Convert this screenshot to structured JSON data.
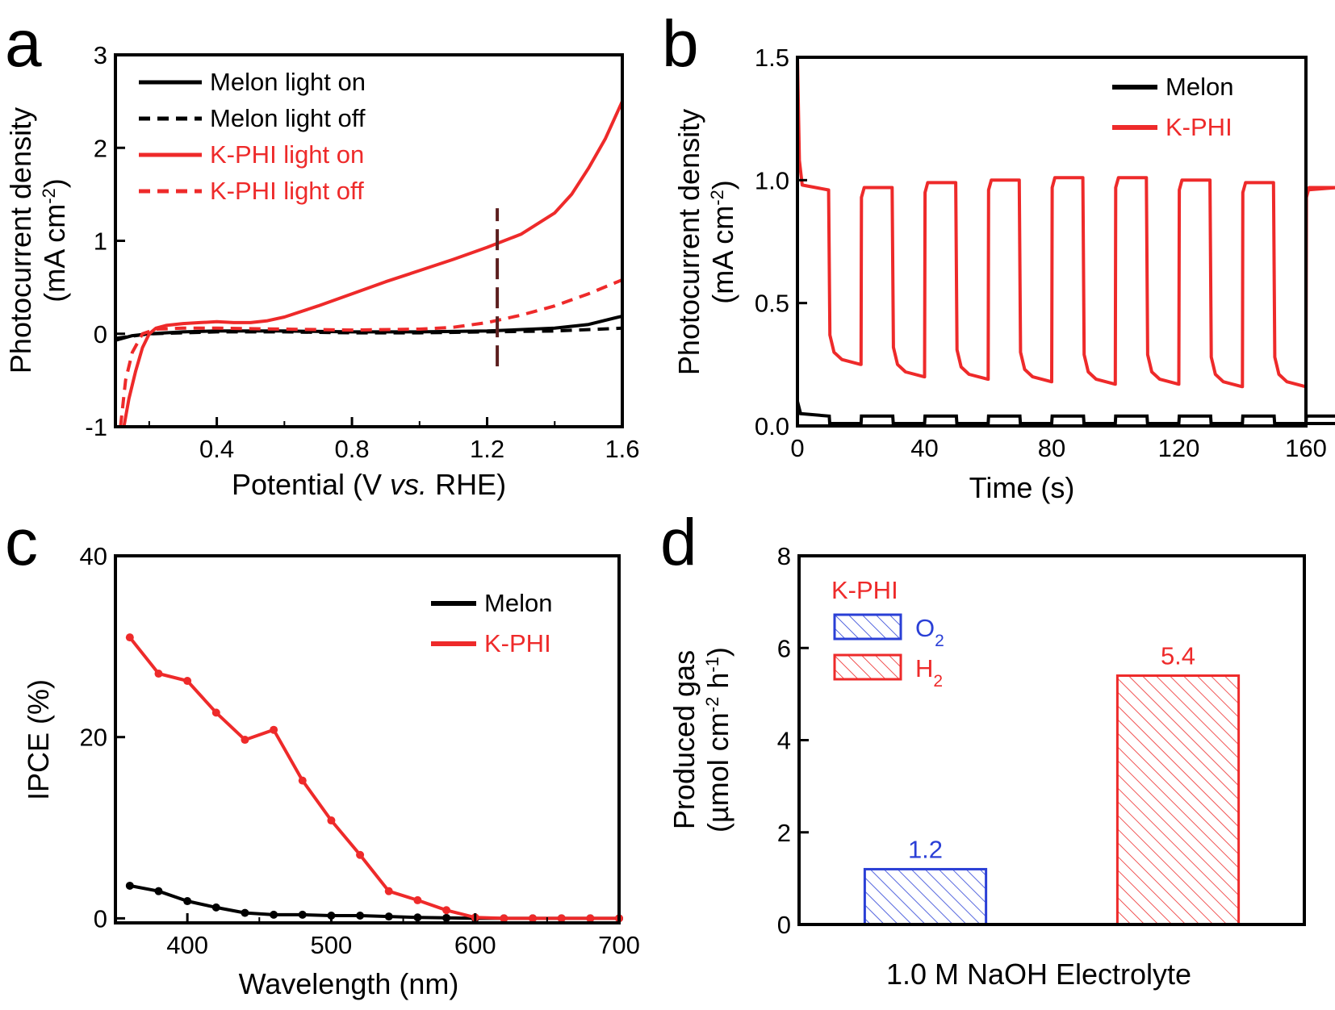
{
  "colors": {
    "melon": "#000000",
    "kphi": "#ee2a2a",
    "o2": "#2a3fd6",
    "h2": "#ee2a2a",
    "marker": "#5c1f1f"
  },
  "chart_data": [
    {
      "panel": "a",
      "type": "line",
      "xlabel_parts": [
        "Potential (V ",
        "vs.",
        " RHE)"
      ],
      "ylabel_lines": [
        "Photocurrent density",
        "(mA cm",
        "-2",
        ")"
      ],
      "xlim": [
        0.1,
        1.6
      ],
      "ylim": [
        -1,
        3
      ],
      "xticks": [
        0.4,
        0.8,
        1.2,
        1.6
      ],
      "xtick_labels": [
        "0.4",
        "0.8",
        "1.2",
        "1.6"
      ],
      "yticks": [
        -1,
        0,
        1,
        2,
        3
      ],
      "ytick_labels": [
        "-1",
        "0",
        "1",
        "2",
        "3"
      ],
      "marker_line": {
        "x": 1.23,
        "y": [
          -0.35,
          1.35
        ]
      },
      "series": [
        {
          "name": "Melon light on",
          "color": "melon",
          "dash": false,
          "x": [
            0.1,
            0.15,
            0.2,
            0.3,
            0.4,
            0.6,
            0.8,
            1.0,
            1.2,
            1.4,
            1.5,
            1.6
          ],
          "y": [
            -0.07,
            -0.02,
            0.0,
            0.02,
            0.03,
            0.03,
            0.02,
            0.02,
            0.03,
            0.06,
            0.1,
            0.19
          ]
        },
        {
          "name": "Melon light off",
          "color": "melon",
          "dash": true,
          "x": [
            0.1,
            0.2,
            0.4,
            0.6,
            0.8,
            1.0,
            1.2,
            1.4,
            1.6
          ],
          "y": [
            -0.05,
            0.0,
            0.02,
            0.02,
            0.01,
            0.01,
            0.02,
            0.03,
            0.06
          ]
        },
        {
          "name": "K-PHI light on",
          "color": "kphi",
          "dash": false,
          "x": [
            0.125,
            0.14,
            0.16,
            0.18,
            0.2,
            0.22,
            0.25,
            0.3,
            0.35,
            0.4,
            0.45,
            0.5,
            0.55,
            0.6,
            0.7,
            0.8,
            0.9,
            1.0,
            1.1,
            1.2,
            1.3,
            1.4,
            1.45,
            1.5,
            1.55,
            1.6
          ],
          "y": [
            -1.0,
            -0.7,
            -0.4,
            -0.15,
            0.0,
            0.06,
            0.09,
            0.11,
            0.12,
            0.13,
            0.12,
            0.12,
            0.14,
            0.18,
            0.3,
            0.43,
            0.56,
            0.68,
            0.8,
            0.93,
            1.07,
            1.3,
            1.5,
            1.78,
            2.1,
            2.5
          ]
        },
        {
          "name": "K-PHI light off",
          "color": "kphi",
          "dash": true,
          "x": [
            0.115,
            0.13,
            0.15,
            0.18,
            0.22,
            0.3,
            0.4,
            0.6,
            0.8,
            1.0,
            1.1,
            1.2,
            1.3,
            1.4,
            1.5,
            1.6
          ],
          "y": [
            -1.0,
            -0.5,
            -0.2,
            0.0,
            0.05,
            0.06,
            0.06,
            0.05,
            0.04,
            0.05,
            0.07,
            0.12,
            0.2,
            0.3,
            0.43,
            0.58
          ]
        }
      ],
      "legend": [
        "Melon light on",
        "Melon light off",
        "K-PHI light on",
        "K-PHI light off"
      ]
    },
    {
      "panel": "b",
      "type": "line",
      "xlabel": "Time (s)",
      "ylabel_lines": [
        "Photocurrent density",
        "(mA cm",
        "-2",
        ")"
      ],
      "xlim": [
        0,
        160
      ],
      "ylim": [
        0,
        1.5
      ],
      "xticks": [
        0,
        40,
        80,
        120,
        160
      ],
      "xtick_labels": [
        "0",
        "40",
        "80",
        "120",
        "160"
      ],
      "yticks": [
        0.0,
        0.5,
        1.0,
        1.5
      ],
      "ytick_labels": [
        "0.0",
        "0.5",
        "1.0",
        "1.5"
      ],
      "cycle": {
        "period": 20,
        "on_duration": 10,
        "first_on": 0
      },
      "kphi_on_levels": [
        0.97,
        0.98,
        1.0,
        1.01,
        1.02,
        1.02,
        1.01,
        1.0,
        0.98
      ],
      "kphi_off_low": [
        0.25,
        0.2,
        0.19,
        0.18,
        0.17,
        0.17,
        0.16,
        0.16,
        0.15
      ],
      "kphi_initial_spike": 1.5,
      "melon_on_level": 0.04,
      "melon_off_level": 0.01,
      "series": [
        {
          "name": "Melon",
          "color": "melon"
        },
        {
          "name": "K-PHI",
          "color": "kphi"
        }
      ],
      "legend": [
        "Melon",
        "K-PHI"
      ]
    },
    {
      "panel": "c",
      "type": "line",
      "xlabel": "Wavelength (nm)",
      "ylabel": "IPCE (%)",
      "xlim": [
        350,
        700
      ],
      "ylim": [
        -0.5,
        40
      ],
      "xticks": [
        400,
        500,
        600,
        700
      ],
      "xtick_labels": [
        "400",
        "500",
        "600",
        "700"
      ],
      "yticks": [
        0,
        20,
        40
      ],
      "ytick_labels": [
        "0",
        "20",
        "40"
      ],
      "x": [
        360,
        380,
        400,
        420,
        440,
        460,
        480,
        500,
        520,
        540,
        560,
        580,
        600,
        620,
        640,
        660,
        680,
        700
      ],
      "series": [
        {
          "name": "Melon",
          "color": "melon",
          "values": [
            3.6,
            3.0,
            1.9,
            1.2,
            0.6,
            0.4,
            0.4,
            0.3,
            0.3,
            0.2,
            0.1,
            0.05,
            0.0,
            0.0,
            0.0,
            0.0,
            0.0,
            0.0
          ]
        },
        {
          "name": "K-PHI",
          "color": "kphi",
          "values": [
            31.0,
            27.0,
            26.2,
            22.7,
            19.7,
            20.8,
            15.2,
            10.8,
            7.0,
            3.0,
            2.0,
            0.9,
            0.1,
            0.0,
            0.0,
            0.0,
            0.0,
            0.0
          ]
        }
      ],
      "legend": [
        "Melon",
        "K-PHI"
      ]
    },
    {
      "panel": "d",
      "type": "bar",
      "xlabel": "1.0 M NaOH Electrolyte",
      "ylabel_lines": [
        "Produced gas",
        "(µmol cm",
        "-2",
        " h",
        "-1",
        ")"
      ],
      "ylim": [
        0,
        8
      ],
      "yticks": [
        0,
        2,
        4,
        6,
        8
      ],
      "ytick_labels": [
        "0",
        "2",
        "4",
        "6",
        "8"
      ],
      "categories": [
        "O2",
        "H2"
      ],
      "values": [
        1.2,
        5.4
      ],
      "value_labels": [
        "1.2",
        "5.4"
      ],
      "legend_title": "K-PHI",
      "legend": [
        {
          "base": "O",
          "sub": "2",
          "color": "o2"
        },
        {
          "base": "H",
          "sub": "2",
          "color": "h2"
        }
      ]
    }
  ]
}
